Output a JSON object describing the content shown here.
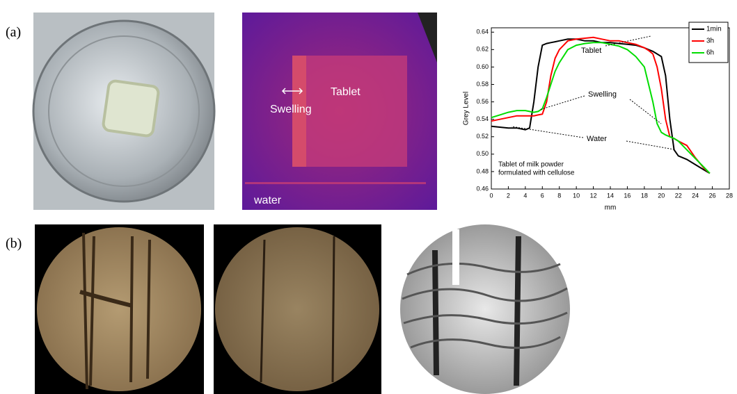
{
  "panel_labels": [
    "(a)",
    "(b)"
  ],
  "image_annotations": {
    "swelling": "Swelling",
    "tablet": "Tablet",
    "water": "water"
  },
  "chart_data": {
    "type": "line",
    "xlabel": "mm",
    "ylabel": "Grey Level",
    "annotations": {
      "tablet": "Tablet",
      "swelling": "Swelling",
      "water": "Water",
      "note": [
        "Tablet of milk powder",
        "formulated with cellulose"
      ]
    },
    "x": [
      0,
      1,
      2,
      3,
      4,
      4.5,
      5,
      5.5,
      6,
      6.5,
      7,
      7.5,
      8,
      9,
      10,
      11,
      12,
      13,
      14,
      15,
      16,
      17,
      18,
      18.5,
      19,
      19.5,
      20,
      20.5,
      21,
      21.5,
      22,
      23,
      24,
      25,
      25.7
    ],
    "series": [
      {
        "name": "1min",
        "color": "#000000",
        "values": [
          0.532,
          0.531,
          0.53,
          0.53,
          0.528,
          0.53,
          0.56,
          0.6,
          0.625,
          0.627,
          0.628,
          0.629,
          0.63,
          0.632,
          0.632,
          0.63,
          0.63,
          0.628,
          0.628,
          0.627,
          0.626,
          0.625,
          0.622,
          0.62,
          0.618,
          0.615,
          0.612,
          0.59,
          0.54,
          0.505,
          0.498,
          0.494,
          0.488,
          0.482,
          0.478
        ]
      },
      {
        "name": "3h",
        "color": "#ff0000",
        "values": [
          0.538,
          0.54,
          0.542,
          0.544,
          0.544,
          0.544,
          0.544,
          0.545,
          0.546,
          0.56,
          0.59,
          0.61,
          0.62,
          0.63,
          0.632,
          0.633,
          0.634,
          0.632,
          0.63,
          0.63,
          0.628,
          0.626,
          0.622,
          0.619,
          0.615,
          0.6,
          0.575,
          0.54,
          0.52,
          0.518,
          0.515,
          0.51,
          0.496,
          0.484,
          0.478
        ]
      },
      {
        "name": "6h",
        "color": "#00dd00",
        "values": [
          0.542,
          0.545,
          0.548,
          0.55,
          0.55,
          0.549,
          0.548,
          0.549,
          0.552,
          0.565,
          0.58,
          0.595,
          0.605,
          0.62,
          0.625,
          0.627,
          0.628,
          0.628,
          0.626,
          0.624,
          0.62,
          0.612,
          0.6,
          0.58,
          0.56,
          0.535,
          0.525,
          0.522,
          0.52,
          0.518,
          0.515,
          0.505,
          0.495,
          0.485,
          0.478
        ]
      }
    ],
    "xlim": [
      0,
      28
    ],
    "xticks": [
      0,
      2,
      4,
      6,
      8,
      10,
      12,
      14,
      16,
      18,
      20,
      22,
      24,
      26,
      28
    ],
    "ylim": [
      0.46,
      0.645
    ],
    "yticks": [
      0.46,
      0.48,
      {
        "value": 0.5,
        "label": "0.50"
      },
      0.52,
      0.54,
      0.56,
      0.58,
      {
        "value": 0.6,
        "label": "0.60"
      },
      0.62,
      0.64
    ],
    "legend": "upper right"
  }
}
